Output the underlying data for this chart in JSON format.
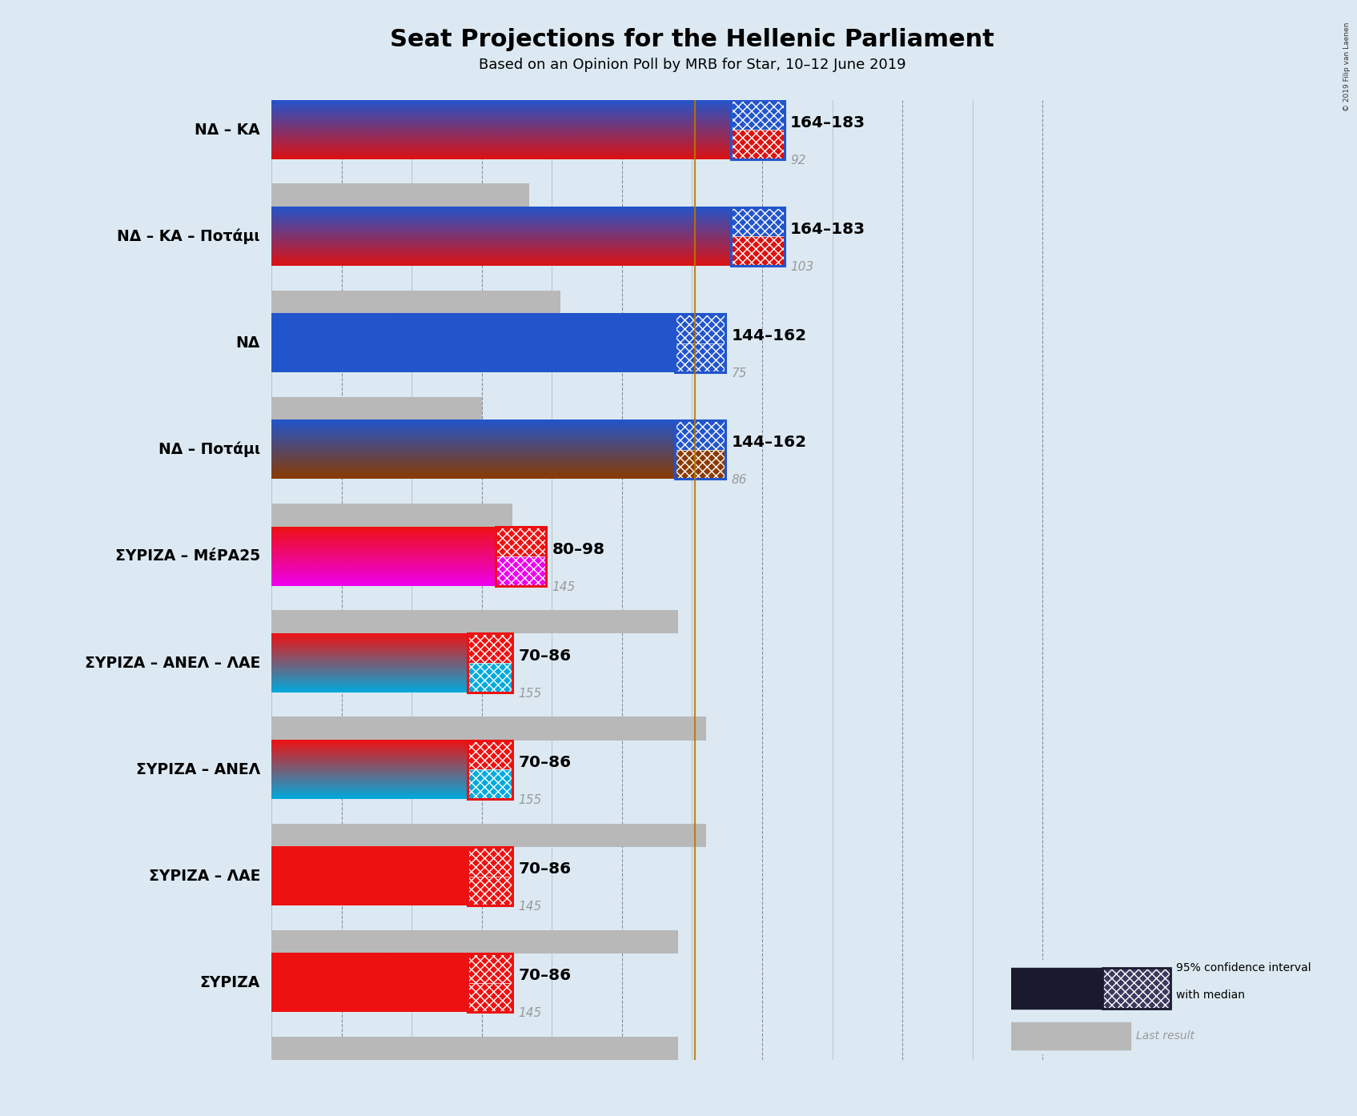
{
  "title": "Seat Projections for the Hellenic Parliament",
  "subtitle": "Based on an Opinion Poll by MRB for Star, 10–12 June 2019",
  "copyright": "© 2019 Filip van Laenen",
  "background_color": "#dce9f2",
  "majority_line": 151,
  "coalitions": [
    {
      "label": "ΝΔ – ΚΑ",
      "underline": false,
      "ci_low": 164,
      "ci_high": 183,
      "last_result": 92,
      "color_top": "#2255cc",
      "color_bottom": "#dd1111",
      "label_text": "164–183",
      "last_text": "92"
    },
    {
      "label": "ΝΔ – ΚΑ – Ποτάμι",
      "underline": false,
      "ci_low": 164,
      "ci_high": 183,
      "last_result": 103,
      "color_top": "#2255cc",
      "color_bottom": "#dd1111",
      "label_text": "164–183",
      "last_text": "103"
    },
    {
      "label": "ΝΔ",
      "underline": false,
      "ci_low": 144,
      "ci_high": 162,
      "last_result": 75,
      "color_top": "#2255cc",
      "color_bottom": "#2255cc",
      "label_text": "144–162",
      "last_text": "75"
    },
    {
      "label": "ΝΔ – Ποτάμι",
      "underline": false,
      "ci_low": 144,
      "ci_high": 162,
      "last_result": 86,
      "color_top": "#2255cc",
      "color_bottom": "#8b3a00",
      "label_text": "144–162",
      "last_text": "86"
    },
    {
      "label": "ΣΥΡΙΖΑ – ΜέΡΑ25",
      "underline": false,
      "ci_low": 80,
      "ci_high": 98,
      "last_result": 145,
      "color_top": "#ee1111",
      "color_bottom": "#ee00ee",
      "label_text": "80–98",
      "last_text": "145"
    },
    {
      "label": "ΣΥΡΙΖΑ – ΑΝΕΛ – ΛΑΕ",
      "underline": false,
      "ci_low": 70,
      "ci_high": 86,
      "last_result": 155,
      "color_top": "#ee1111",
      "color_bottom": "#00aadd",
      "label_text": "70–86",
      "last_text": "155"
    },
    {
      "label": "ΣΥΡΙΖΑ – ΑΝΕΛ",
      "underline": false,
      "ci_low": 70,
      "ci_high": 86,
      "last_result": 155,
      "color_top": "#ee1111",
      "color_bottom": "#00aadd",
      "label_text": "70–86",
      "last_text": "155"
    },
    {
      "label": "ΣΥΡΙΖΑ – ΛΑΕ",
      "underline": false,
      "ci_low": 70,
      "ci_high": 86,
      "last_result": 145,
      "color_top": "#ee1111",
      "color_bottom": "#ee1111",
      "label_text": "70–86",
      "last_text": "145"
    },
    {
      "label": "ΣΥΡΙΖΑ",
      "underline": true,
      "ci_low": 70,
      "ci_high": 86,
      "last_result": 145,
      "color_top": "#ee1111",
      "color_bottom": "#ee1111",
      "label_text": "70–86",
      "last_text": "145"
    }
  ],
  "xmax": 300,
  "tick_positions": [
    0,
    50,
    100,
    150,
    200,
    250,
    300
  ],
  "dashed_ticks": [
    25,
    75,
    125,
    175,
    225,
    275
  ],
  "legend_text1": "95% confidence interval",
  "legend_text2": "with median",
  "legend_text3": "Last result"
}
